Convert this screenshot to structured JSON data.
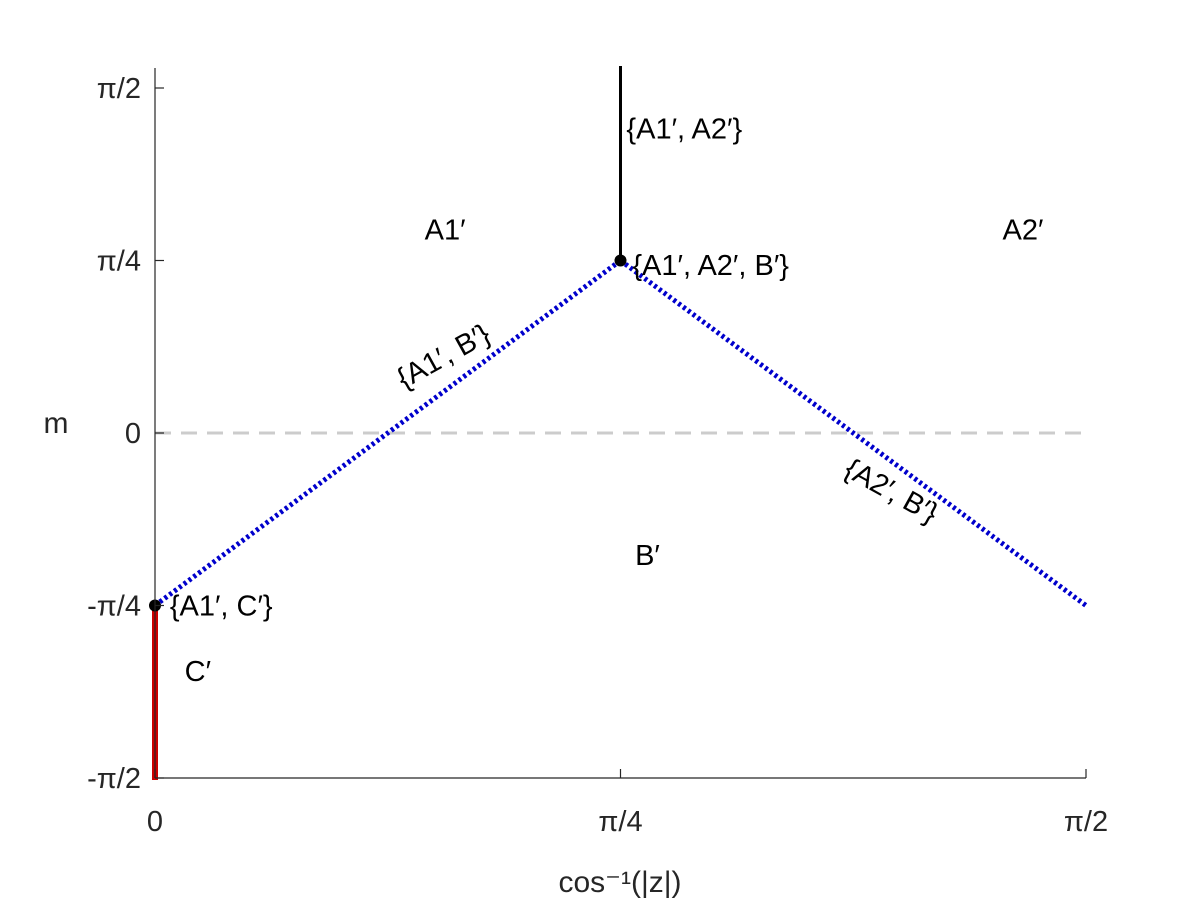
{
  "chart_data": {
    "type": "line",
    "title": "",
    "xlabel": "cos⁻¹(|z|)",
    "ylabel": "m",
    "xlim": [
      0,
      1.5708
    ],
    "ylim": [
      -1.5708,
      1.5708
    ],
    "x_ticks": [
      {
        "value": 0,
        "label": "0"
      },
      {
        "value": 0.7854,
        "label": "π/4"
      },
      {
        "value": 1.5708,
        "label": "π/2"
      }
    ],
    "y_ticks": [
      {
        "value": 1.5708,
        "label": "π/2"
      },
      {
        "value": 0.7854,
        "label": "π/4"
      },
      {
        "value": 0,
        "label": "0"
      },
      {
        "value": -0.7854,
        "label": "-π/4"
      },
      {
        "value": -1.5708,
        "label": "-π/2"
      }
    ],
    "grid": false,
    "series": [
      {
        "id": "zero-line",
        "style": "dashed",
        "color": "#cccccc",
        "x": [
          0,
          1.5708
        ],
        "y": [
          0,
          0
        ]
      },
      {
        "id": "boundary-a1-b-left",
        "style": "dotted",
        "color": "#0000cc",
        "x": [
          0,
          0.7854
        ],
        "y": [
          -0.7854,
          0.7854
        ]
      },
      {
        "id": "boundary-a2-b-right",
        "style": "dotted",
        "color": "#0000cc",
        "x": [
          0.7854,
          1.5708
        ],
        "y": [
          0.7854,
          -0.7854
        ]
      },
      {
        "id": "boundary-a1-a2",
        "style": "solid",
        "color": "#000000",
        "x": [
          0.7854,
          0.7854
        ],
        "y": [
          0.7854,
          1.5708
        ]
      },
      {
        "id": "region-c-line",
        "style": "solid",
        "color": "#cc0000",
        "x": [
          0,
          0
        ],
        "y": [
          -0.7854,
          -1.5708
        ]
      }
    ],
    "points": [
      {
        "id": "triple-point",
        "x": 0.7854,
        "y": 0.7854
      },
      {
        "id": "a1-c-point",
        "x": 0,
        "y": -0.7854
      }
    ],
    "annotations": [
      {
        "id": "region-a1",
        "text": "A1′",
        "x": 0.455,
        "y": 0.88,
        "rotate": 0
      },
      {
        "id": "region-a2",
        "text": "A2′",
        "x": 1.43,
        "y": 0.88,
        "rotate": 0
      },
      {
        "id": "region-b",
        "text": "B′",
        "x": 0.81,
        "y": -0.6,
        "rotate": 0
      },
      {
        "id": "region-c",
        "text": "C′",
        "x": 0.05,
        "y": -1.13,
        "rotate": 0
      },
      {
        "id": "label-a1-a2",
        "text": "{A1′, A2′}",
        "x": 0.01,
        "y": 1.34,
        "rotate": 0,
        "anchor_x": 0.7854
      },
      {
        "id": "label-a1-a2-b",
        "text": "{A1′, A2′, B′}",
        "x": 0.02,
        "y": 0.72,
        "rotate": 0,
        "anchor_x": 0.7854
      },
      {
        "id": "label-a1-b",
        "text": "{A1′, B′}",
        "x": 0.42,
        "y": 0.2,
        "rotate": -29
      },
      {
        "id": "label-a2-b",
        "text": "{A2′, B′}",
        "x": 1.16,
        "y": -0.19,
        "rotate": 29
      },
      {
        "id": "label-a1-c",
        "text": "{A1′, C′}",
        "x": 0.025,
        "y": -0.83,
        "rotate": 0
      }
    ]
  }
}
